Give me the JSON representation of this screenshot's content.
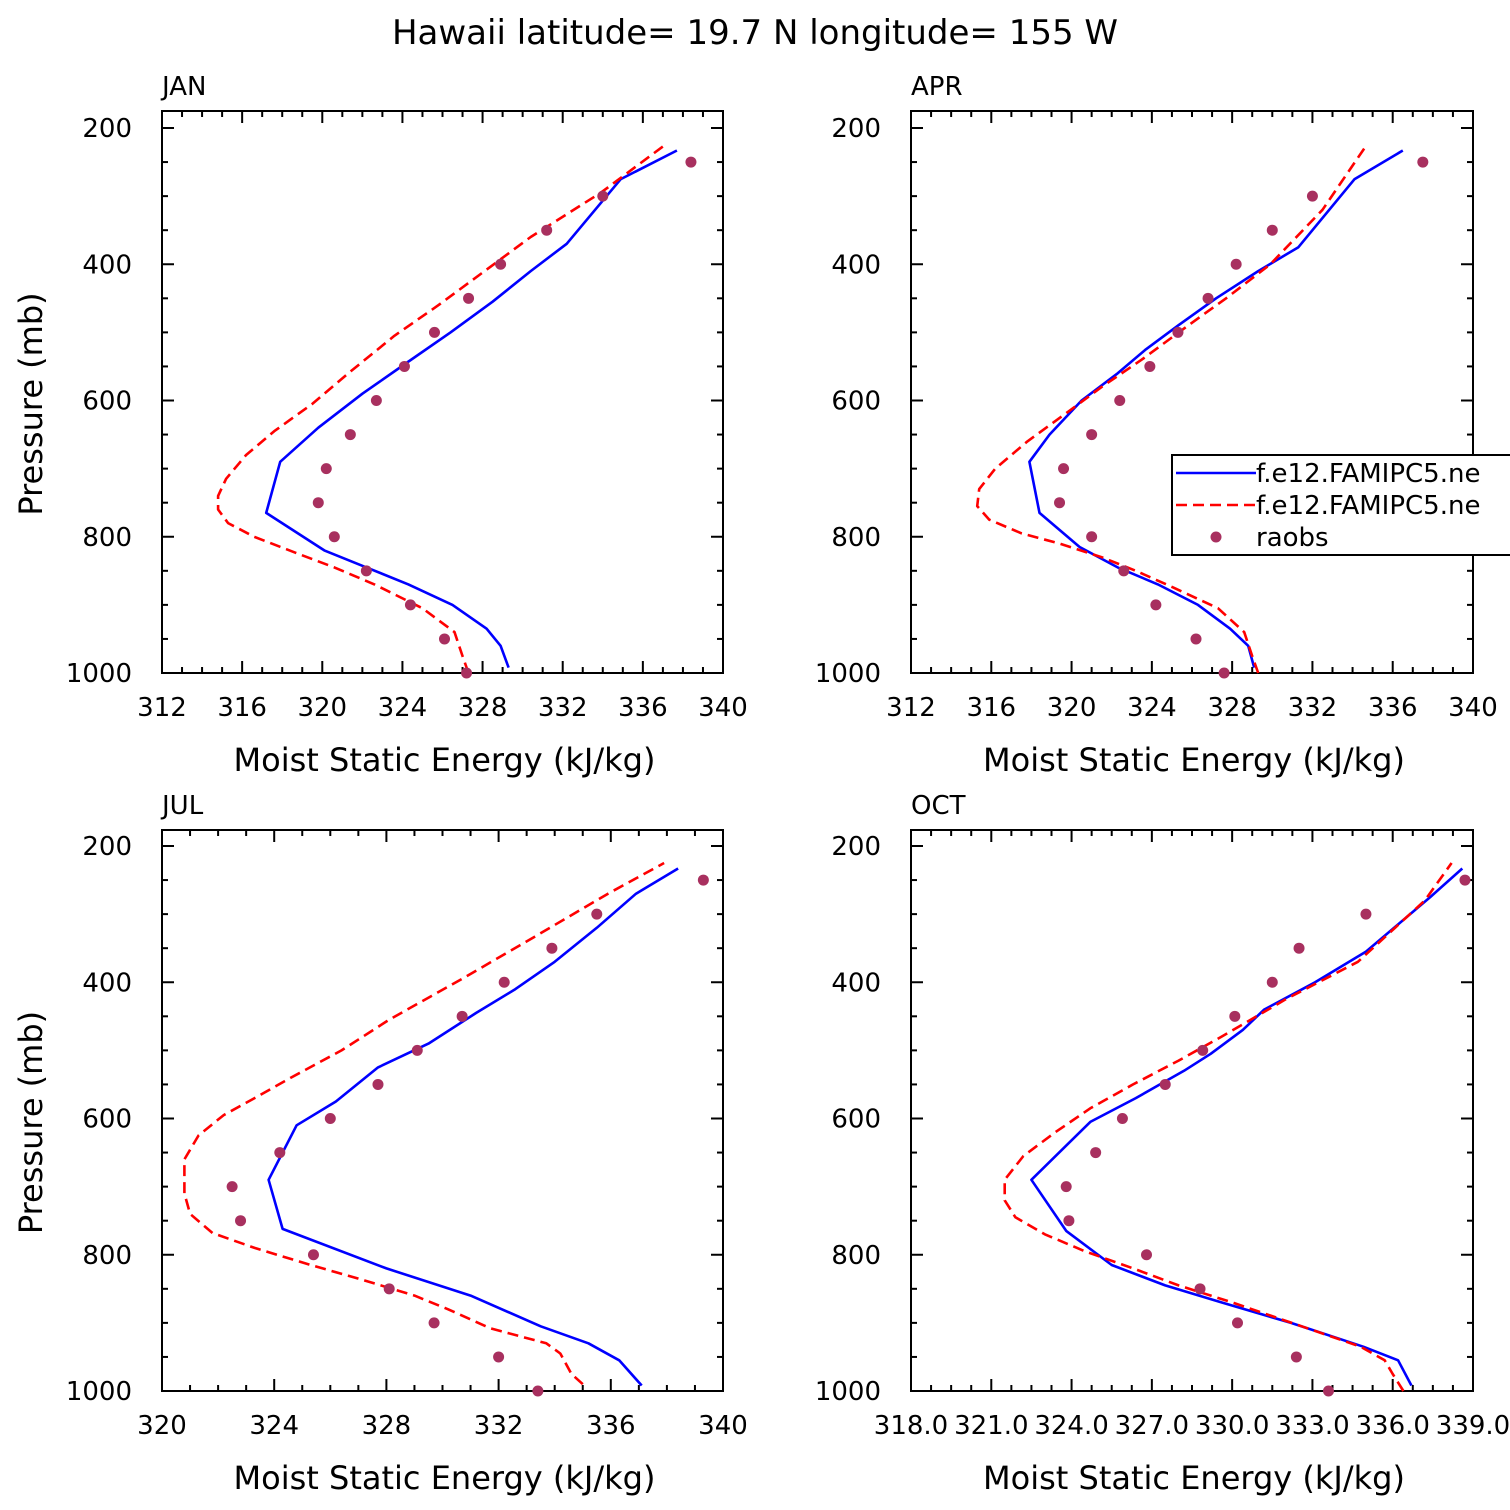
{
  "title": "Hawaii  latitude= 19.7 N longitude= 155 W",
  "colors": {
    "model_a": "#0000ff",
    "model_b": "#ff0000",
    "raobs": "#a8305f"
  },
  "chart_data": [
    {
      "type": "line",
      "panel_label": "JAN",
      "xlabel": "Moist Static Energy (kJ/kg)",
      "ylabel": "Pressure (mb)",
      "xlim": [
        312,
        340
      ],
      "ylim": [
        1000,
        200
      ],
      "xticks": [
        "312",
        "316",
        "320",
        "324",
        "328",
        "332",
        "336",
        "340"
      ],
      "yticks": [
        "200",
        "400",
        "600",
        "800",
        "1000"
      ],
      "series": [
        {
          "key": "model_a",
          "name": "f.e12.FAMIPC5.ne",
          "style": "solid",
          "points": [
            [
              329.3,
              992
            ],
            [
              328.9,
              960
            ],
            [
              328.2,
              935
            ],
            [
              326.5,
              900
            ],
            [
              324.3,
              870
            ],
            [
              322.2,
              845
            ],
            [
              320.1,
              820
            ],
            [
              317.2,
              765
            ],
            [
              317.9,
              690
            ],
            [
              319.8,
              640
            ],
            [
              322.0,
              590
            ],
            [
              324.2,
              545
            ],
            [
              326.4,
              500
            ],
            [
              328.5,
              455
            ],
            [
              330.4,
              410
            ],
            [
              332.2,
              370
            ],
            [
              334.9,
              275
            ],
            [
              337.7,
              233
            ]
          ]
        },
        {
          "key": "model_b",
          "name": "f.e12.FAMIPC5.ne",
          "style": "dashed",
          "points": [
            [
              327.3,
              1000
            ],
            [
              327.0,
              975
            ],
            [
              326.6,
              940
            ],
            [
              325.0,
              905
            ],
            [
              322.6,
              870
            ],
            [
              320.6,
              845
            ],
            [
              318.8,
              825
            ],
            [
              316.6,
              800
            ],
            [
              315.3,
              780
            ],
            [
              314.8,
              760
            ],
            [
              314.8,
              740
            ],
            [
              315.2,
              715
            ],
            [
              316.2,
              680
            ],
            [
              317.6,
              645
            ],
            [
              319.5,
              605
            ],
            [
              321.3,
              560
            ],
            [
              323.6,
              505
            ],
            [
              325.8,
              460
            ],
            [
              328.1,
              410
            ],
            [
              330.4,
              360
            ],
            [
              333.9,
              295
            ],
            [
              337.1,
              225
            ]
          ]
        }
      ],
      "scatter": {
        "key": "raobs",
        "name": "raobs",
        "points": [
          [
            327.2,
            1000
          ],
          [
            326.1,
            950
          ],
          [
            324.4,
            900
          ],
          [
            322.2,
            850
          ],
          [
            320.6,
            800
          ],
          [
            319.8,
            750
          ],
          [
            320.2,
            700
          ],
          [
            321.4,
            650
          ],
          [
            322.7,
            600
          ],
          [
            324.1,
            550
          ],
          [
            325.6,
            500
          ],
          [
            327.3,
            450
          ],
          [
            328.9,
            400
          ],
          [
            331.2,
            350
          ],
          [
            334.0,
            300
          ],
          [
            338.4,
            250
          ]
        ]
      }
    },
    {
      "type": "line",
      "panel_label": "APR",
      "xlabel": "Moist Static Energy (kJ/kg)",
      "ylabel": "",
      "xlim": [
        312,
        340
      ],
      "ylim": [
        1000,
        200
      ],
      "xticks": [
        "312",
        "316",
        "320",
        "324",
        "328",
        "332",
        "336",
        "340"
      ],
      "yticks": [
        "200",
        "400",
        "600",
        "800",
        "1000"
      ],
      "series": [
        {
          "key": "model_a",
          "name": "f.e12.FAMIPC5.ne",
          "style": "solid",
          "points": [
            [
              329.1,
              992
            ],
            [
              328.8,
              960
            ],
            [
              327.9,
              935
            ],
            [
              326.3,
              900
            ],
            [
              324.3,
              870
            ],
            [
              322.3,
              845
            ],
            [
              320.4,
              815
            ],
            [
              318.4,
              765
            ],
            [
              317.9,
              690
            ],
            [
              318.9,
              650
            ],
            [
              320.5,
              600
            ],
            [
              322.3,
              560
            ],
            [
              323.7,
              525
            ],
            [
              325.3,
              490
            ],
            [
              327.2,
              450
            ],
            [
              329.3,
              410
            ],
            [
              331.3,
              375
            ],
            [
              334.1,
              275
            ],
            [
              336.5,
              233
            ]
          ]
        },
        {
          "key": "model_b",
          "name": "f.e12.FAMIPC5.ne",
          "style": "dashed",
          "points": [
            [
              329.3,
              1000
            ],
            [
              329.0,
              975
            ],
            [
              328.6,
              940
            ],
            [
              327.3,
              905
            ],
            [
              325.1,
              875
            ],
            [
              323.2,
              850
            ],
            [
              321.5,
              830
            ],
            [
              319.4,
              810
            ],
            [
              317.5,
              795
            ],
            [
              315.9,
              775
            ],
            [
              315.3,
              755
            ],
            [
              315.4,
              730
            ],
            [
              316.2,
              700
            ],
            [
              317.8,
              660
            ],
            [
              319.9,
              615
            ],
            [
              321.5,
              580
            ],
            [
              323.5,
              540
            ],
            [
              325.8,
              490
            ],
            [
              327.7,
              450
            ],
            [
              329.9,
              400
            ],
            [
              332.5,
              320
            ],
            [
              334.7,
              225
            ]
          ]
        }
      ],
      "scatter": {
        "key": "raobs",
        "name": "raobs",
        "points": [
          [
            327.6,
            1000
          ],
          [
            326.2,
            950
          ],
          [
            324.2,
            900
          ],
          [
            322.6,
            850
          ],
          [
            321.0,
            800
          ],
          [
            319.4,
            750
          ],
          [
            319.6,
            700
          ],
          [
            321.0,
            650
          ],
          [
            322.4,
            600
          ],
          [
            323.9,
            550
          ],
          [
            325.3,
            500
          ],
          [
            326.8,
            450
          ],
          [
            328.2,
            400
          ],
          [
            330.0,
            350
          ],
          [
            332.0,
            300
          ],
          [
            337.5,
            250
          ]
        ]
      }
    },
    {
      "type": "line",
      "panel_label": "JUL",
      "xlabel": "Moist Static Energy (kJ/kg)",
      "ylabel": "Pressure (mb)",
      "xlim": [
        320,
        340
      ],
      "ylim": [
        1000,
        200
      ],
      "xticks": [
        "320",
        "324",
        "328",
        "332",
        "336",
        "340"
      ],
      "yticks": [
        "200",
        "400",
        "600",
        "800",
        "1000"
      ],
      "series": [
        {
          "key": "model_a",
          "name": "f.e12.FAMIPC5.ne",
          "style": "solid",
          "points": [
            [
              337.1,
              992
            ],
            [
              336.3,
              955
            ],
            [
              335.2,
              930
            ],
            [
              333.5,
              905
            ],
            [
              331.0,
              860
            ],
            [
              328.0,
              820
            ],
            [
              324.3,
              762
            ],
            [
              323.8,
              690
            ],
            [
              324.8,
              610
            ],
            [
              326.2,
              575
            ],
            [
              327.7,
              525
            ],
            [
              329.5,
              490
            ],
            [
              331.2,
              445
            ],
            [
              332.6,
              410
            ],
            [
              334.0,
              370
            ],
            [
              335.5,
              320
            ],
            [
              336.9,
              270
            ],
            [
              338.4,
              233
            ]
          ]
        },
        {
          "key": "model_b",
          "name": "f.e12.FAMIPC5.ne",
          "style": "dashed",
          "points": [
            [
              335.0,
              990
            ],
            [
              334.6,
              975
            ],
            [
              334.2,
              945
            ],
            [
              333.7,
              930
            ],
            [
              331.7,
              908
            ],
            [
              330.2,
              880
            ],
            [
              329.0,
              860
            ],
            [
              327.0,
              835
            ],
            [
              325.3,
              815
            ],
            [
              323.3,
              790
            ],
            [
              321.8,
              768
            ],
            [
              321.0,
              740
            ],
            [
              320.8,
              710
            ],
            [
              320.8,
              660
            ],
            [
              321.3,
              625
            ],
            [
              322.2,
              595
            ],
            [
              323.3,
              570
            ],
            [
              324.6,
              540
            ],
            [
              326.4,
              500
            ],
            [
              328.1,
              455
            ],
            [
              330.7,
              395
            ],
            [
              333.0,
              340
            ],
            [
              335.9,
              270
            ],
            [
              337.9,
              225
            ]
          ]
        }
      ],
      "scatter": {
        "key": "raobs",
        "name": "raobs",
        "points": [
          [
            333.4,
            1000
          ],
          [
            332.0,
            950
          ],
          [
            329.7,
            900
          ],
          [
            328.1,
            850
          ],
          [
            325.4,
            800
          ],
          [
            322.8,
            750
          ],
          [
            322.5,
            700
          ],
          [
            324.2,
            650
          ],
          [
            326.0,
            600
          ],
          [
            327.7,
            550
          ],
          [
            329.1,
            500
          ],
          [
            330.7,
            450
          ],
          [
            332.2,
            400
          ],
          [
            333.9,
            350
          ],
          [
            335.5,
            300
          ],
          [
            339.3,
            250
          ]
        ]
      }
    },
    {
      "type": "line",
      "panel_label": "OCT",
      "xlabel": "Moist Static Energy (kJ/kg)",
      "ylabel": "",
      "xlim": [
        318.0,
        339.0
      ],
      "ylim": [
        1000,
        200
      ],
      "xticks": [
        "318.0",
        "321.0",
        "324.0",
        "327.0",
        "330.0",
        "333.0",
        "336.0",
        "339.0"
      ],
      "yticks": [
        "200",
        "400",
        "600",
        "800",
        "1000"
      ],
      "series": [
        {
          "key": "model_a",
          "name": "f.e12.FAMIPC5.ne",
          "style": "solid",
          "points": [
            [
              336.7,
              992
            ],
            [
              336.2,
              955
            ],
            [
              334.9,
              935
            ],
            [
              332.2,
              900
            ],
            [
              329.6,
              870
            ],
            [
              327.5,
              845
            ],
            [
              325.5,
              815
            ],
            [
              323.8,
              765
            ],
            [
              322.5,
              690
            ],
            [
              324.7,
              605
            ],
            [
              326.4,
              570
            ],
            [
              328.2,
              530
            ],
            [
              329.2,
              505
            ],
            [
              330.4,
              470
            ],
            [
              331.2,
              440
            ],
            [
              333.1,
              400
            ],
            [
              335.0,
              355
            ],
            [
              337.4,
              275
            ],
            [
              338.6,
              233
            ]
          ]
        },
        {
          "key": "model_b",
          "name": "f.e12.FAMIPC5.ne",
          "style": "dashed",
          "points": [
            [
              336.4,
              1000
            ],
            [
              336.0,
              975
            ],
            [
              335.7,
              955
            ],
            [
              334.8,
              935
            ],
            [
              332.6,
              905
            ],
            [
              330.0,
              870
            ],
            [
              328.0,
              845
            ],
            [
              326.3,
              820
            ],
            [
              324.5,
              795
            ],
            [
              323.0,
              770
            ],
            [
              321.9,
              745
            ],
            [
              321.5,
              720
            ],
            [
              321.5,
              690
            ],
            [
              322.2,
              655
            ],
            [
              323.4,
              620
            ],
            [
              324.7,
              585
            ],
            [
              326.3,
              550
            ],
            [
              328.0,
              515
            ],
            [
              329.6,
              480
            ],
            [
              332.0,
              425
            ],
            [
              334.7,
              370
            ],
            [
              337.2,
              280
            ],
            [
              338.2,
              225
            ]
          ]
        }
      ],
      "scatter": {
        "key": "raobs",
        "name": "raobs",
        "points": [
          [
            333.6,
            1000
          ],
          [
            332.4,
            950
          ],
          [
            330.2,
            900
          ],
          [
            328.8,
            850
          ],
          [
            326.8,
            800
          ],
          [
            323.9,
            750
          ],
          [
            323.8,
            700
          ],
          [
            324.9,
            650
          ],
          [
            325.9,
            600
          ],
          [
            327.5,
            550
          ],
          [
            328.9,
            500
          ],
          [
            330.1,
            450
          ],
          [
            331.5,
            400
          ],
          [
            332.5,
            350
          ],
          [
            335.0,
            300
          ],
          [
            338.7,
            250
          ]
        ]
      }
    }
  ],
  "legend": {
    "entries": [
      {
        "key": "model_a",
        "label": "f.e12.FAMIPC5.ne",
        "style": "solid"
      },
      {
        "key": "model_b",
        "label": "f.e12.FAMIPC5.ne",
        "style": "dashed"
      },
      {
        "key": "raobs",
        "label": "raobs",
        "style": "marker"
      }
    ]
  }
}
